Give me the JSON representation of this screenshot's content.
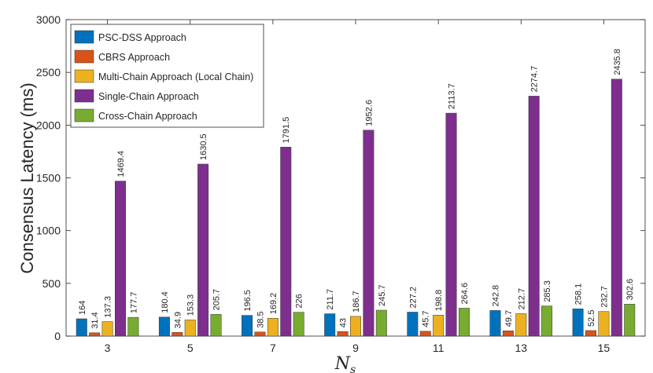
{
  "chart_data": {
    "type": "bar",
    "title": "",
    "xlabel": "N",
    "xlabel_sub": "s",
    "ylabel": "Consensus Latency (ms)",
    "categories": [
      "3",
      "5",
      "7",
      "9",
      "11",
      "13",
      "15"
    ],
    "ylim": [
      0,
      3000
    ],
    "yticks": [
      0,
      500,
      1000,
      1500,
      2000,
      2500,
      3000
    ],
    "legend_position": "top-left",
    "series": [
      {
        "name": "PSC-DSS Approach",
        "color": "#0072BD",
        "values": [
          164,
          180.4,
          196.5,
          211.7,
          227.2,
          242.8,
          258.1
        ]
      },
      {
        "name": "CBRS Approach",
        "color": "#D95319",
        "values": [
          31.4,
          34.9,
          38.5,
          43,
          45.7,
          49.7,
          52.5
        ]
      },
      {
        "name": "Multi-Chain Approach (Local Chain)",
        "color": "#EDB120",
        "values": [
          137.3,
          153.3,
          169.2,
          186.7,
          198.8,
          212.7,
          232.7
        ]
      },
      {
        "name": "Single-Chain Approach",
        "color": "#7E2F8E",
        "values": [
          1469.4,
          1630.5,
          1791.5,
          1952.6,
          2113.7,
          2274.7,
          2435.8
        ]
      },
      {
        "name": "Cross-Chain Approach",
        "color": "#77AC30",
        "values": [
          177.7,
          205.7,
          226,
          245.7,
          264.6,
          285.3,
          302.6
        ]
      }
    ]
  }
}
